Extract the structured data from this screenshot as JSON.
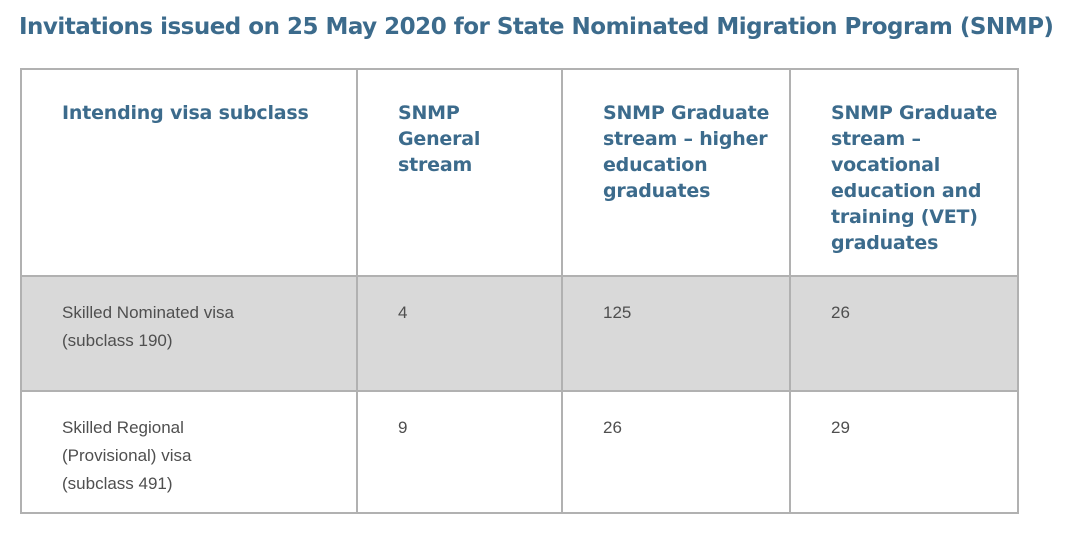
{
  "page": {
    "title": "Invitations issued on 25 May 2020 for State Nominated Migration Program (SNMP)"
  },
  "table": {
    "columns": [
      "Intending visa subclass",
      "SNMP General stream",
      "SNMP Graduate stream – higher education graduates",
      "SNMP Graduate stream – vocational education and training (VET) graduates"
    ],
    "rows": [
      {
        "label": "Skilled Nominated visa (subclass 190)",
        "label_lines": [
          "Skilled Nominated visa",
          "(subclass 190)"
        ],
        "values": [
          "4",
          "125",
          "26"
        ]
      },
      {
        "label": "Skilled Regional (Provisional) visa (subclass 491)",
        "label_lines": [
          "Skilled Regional",
          "(Provisional) visa",
          "(subclass 491)"
        ],
        "values": [
          "9",
          "26",
          "29"
        ]
      }
    ]
  },
  "colors": {
    "heading_text": "#3c6b8c",
    "body_text": "#4f4f4f",
    "shaded_row_bg": "#d9d9d9",
    "cell_border": "#b1b1b1",
    "outer_border": "#9f9f9f",
    "page_bg": "#ffffff"
  }
}
